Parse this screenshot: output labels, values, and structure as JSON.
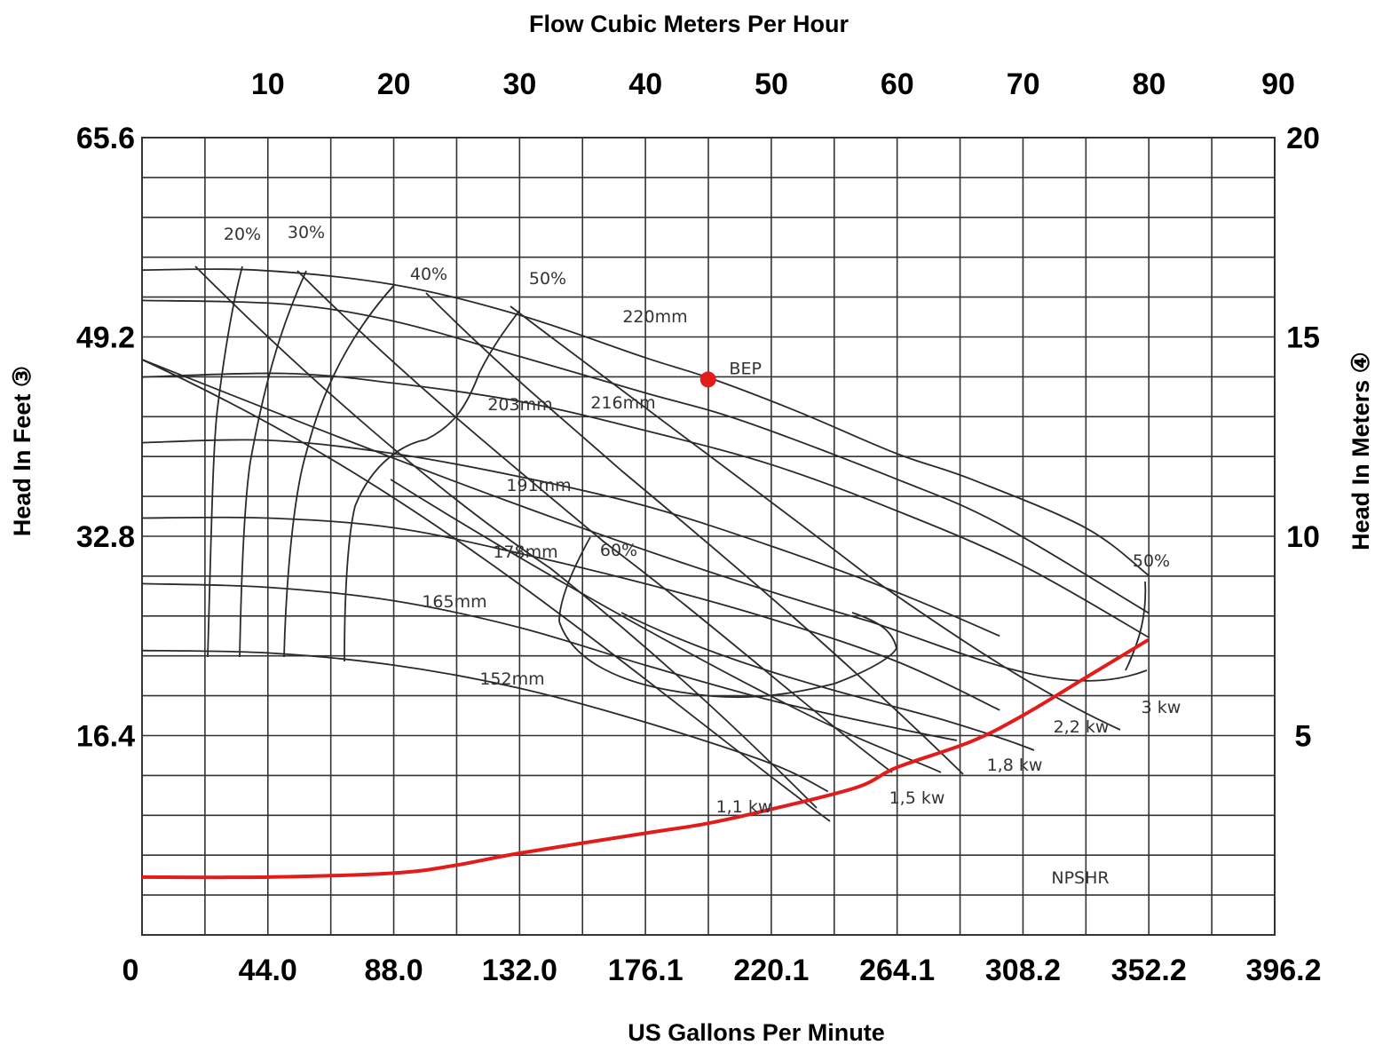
{
  "chart_data": {
    "type": "line",
    "title": "",
    "top_axis": {
      "label": "Flow Cubic Meters Per Hour",
      "ticks": [
        "10",
        "20",
        "30",
        "40",
        "50",
        "60",
        "70",
        "80",
        "90"
      ]
    },
    "bottom_axis": {
      "label": "US Gallons Per Minute",
      "ticks": [
        "0",
        "44.0",
        "88.0",
        "132.0",
        "176.1",
        "220.1",
        "264.1",
        "308.2",
        "352.2",
        "396.2"
      ],
      "range": [
        0,
        396.2
      ]
    },
    "left_axis": {
      "label": "Head In Feet ③",
      "ticks": [
        "16.4",
        "32.8",
        "49.2",
        "65.6"
      ],
      "range": [
        0,
        65.6
      ]
    },
    "right_axis": {
      "label": "Head In Meters ④",
      "ticks": [
        "5",
        "10",
        "15",
        "20"
      ],
      "range": [
        0,
        20
      ]
    },
    "grid": true,
    "series": [
      {
        "name": "220mm",
        "x": [
          0,
          40,
          88,
          132,
          176,
          200,
          230,
          264,
          290,
          330,
          352
        ],
        "y": [
          54.7,
          54.7,
          53.5,
          51.0,
          47.5,
          45.7,
          43.0,
          39.6,
          37.5,
          33.5,
          29.6
        ]
      },
      {
        "name": "216mm",
        "x": [
          0,
          50,
          88,
          132,
          176,
          210,
          264,
          300,
          352
        ],
        "y": [
          52.2,
          51.9,
          50.5,
          47.6,
          44.6,
          42.3,
          37.5,
          33.8,
          26.5
        ]
      },
      {
        "name": "203mm",
        "x": [
          0,
          50,
          88,
          132,
          176,
          220,
          264,
          308,
          352
        ],
        "y": [
          45.9,
          46.2,
          45.4,
          43.9,
          41.5,
          38.7,
          34.9,
          30.4,
          24.5
        ]
      },
      {
        "name": "191mm",
        "x": [
          0,
          44,
          88,
          132,
          176,
          220,
          264,
          300
        ],
        "y": [
          40.5,
          40.7,
          39.6,
          37.7,
          35.3,
          32.0,
          28.2,
          24.6
        ]
      },
      {
        "name": "178mm",
        "x": [
          0,
          44,
          88,
          132,
          176,
          220,
          264,
          300
        ],
        "y": [
          34.3,
          34.3,
          33.5,
          31.4,
          28.9,
          26.0,
          22.5,
          18.5
        ]
      },
      {
        "name": "165mm",
        "x": [
          0,
          44,
          88,
          132,
          176,
          220,
          264,
          285
        ],
        "y": [
          28.9,
          28.6,
          27.5,
          25.3,
          22.2,
          19.3,
          17.0,
          16.0
        ]
      },
      {
        "name": "152mm",
        "x": [
          0,
          44,
          88,
          132,
          176,
          220,
          240
        ],
        "y": [
          23.4,
          23.2,
          22.2,
          20.3,
          17.5,
          14.1,
          11.8
        ]
      },
      {
        "name": "NPSHR",
        "x": [
          0,
          44,
          88,
          110,
          132,
          176,
          198,
          220,
          250,
          264,
          290,
          308,
          330,
          352
        ],
        "y": [
          1.45,
          1.45,
          1.55,
          1.75,
          2.05,
          2.55,
          2.8,
          3.15,
          3.7,
          4.2,
          4.85,
          5.5,
          6.45,
          7.4
        ],
        "color": "#e21b1b",
        "axis": "right"
      }
    ],
    "point": {
      "label": "BEP",
      "x": 198,
      "y": 45.7,
      "color": "#e21b1b"
    },
    "annotations": [
      "20%",
      "30%",
      "40%",
      "50%",
      "60%",
      "50%",
      "1,1 kw",
      "1,5 kw",
      "1,8 kw",
      "2,2 kw",
      "3 kw",
      "NPSHR"
    ]
  }
}
